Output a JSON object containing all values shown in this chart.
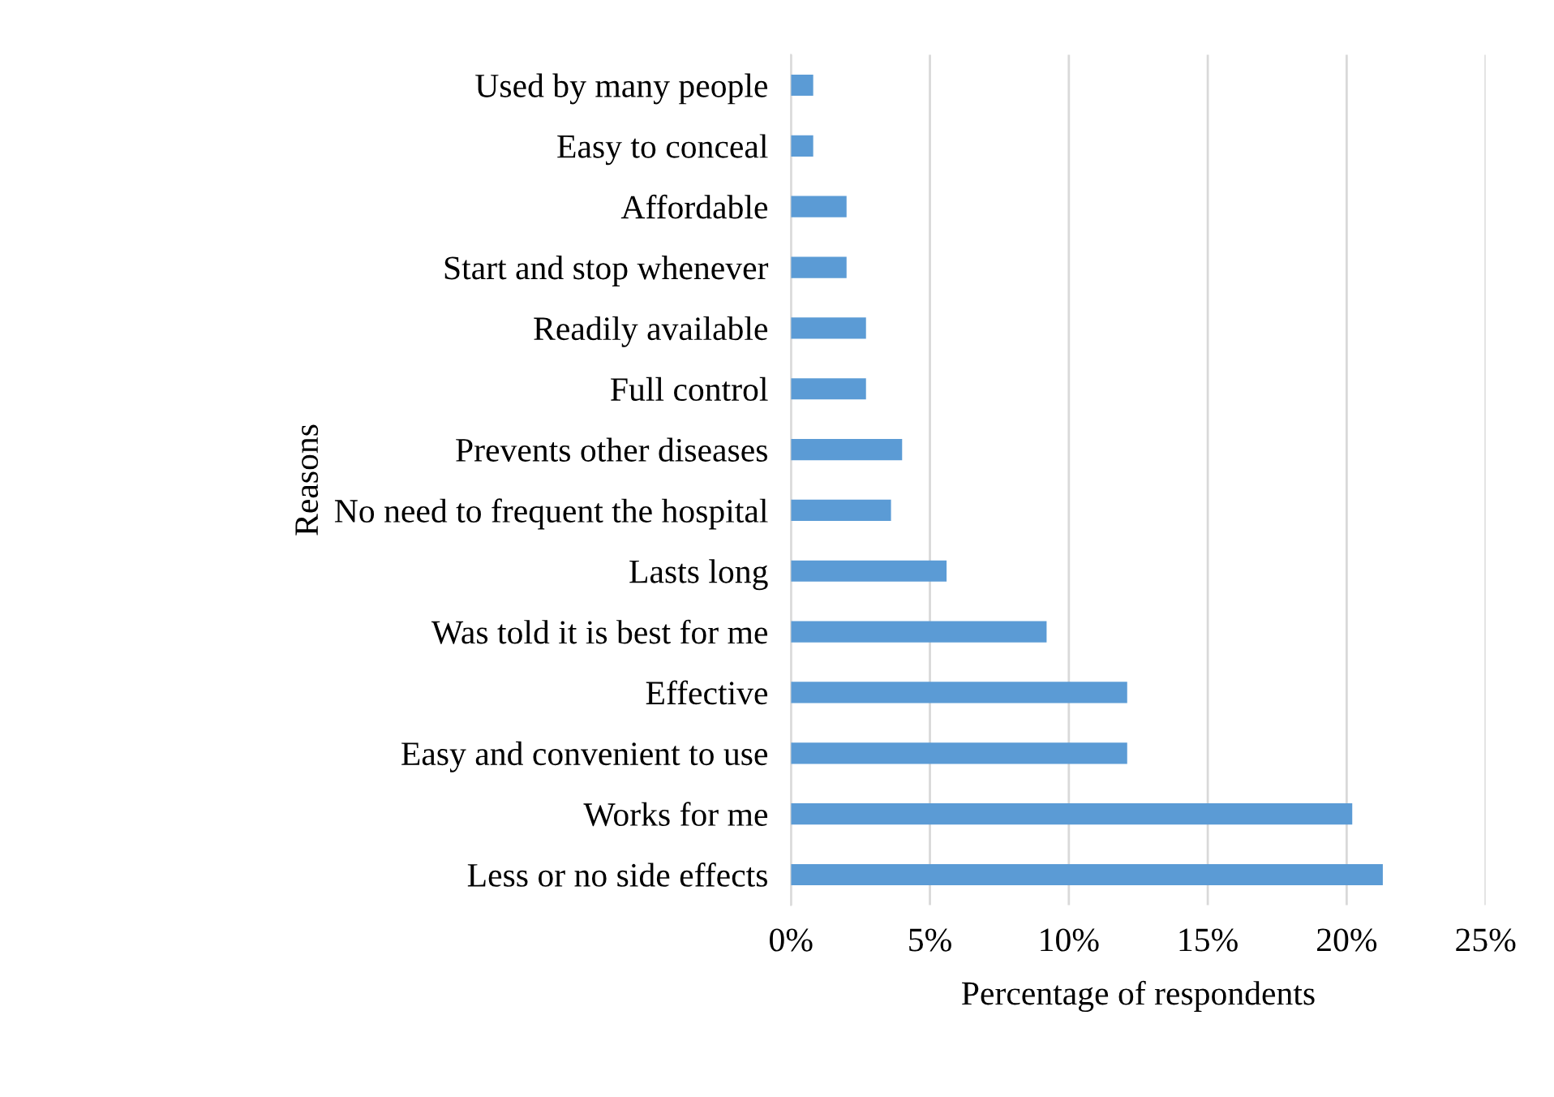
{
  "chart_data": {
    "type": "bar",
    "orientation": "horizontal",
    "xlabel": "Percentage of respondents",
    "ylabel": "Reasons",
    "categories": [
      "Used by many people",
      "Easy to conceal",
      "Affordable",
      "Start and stop whenever",
      "Readily available",
      "Full control",
      "Prevents other diseases",
      "No need to frequent the hospital",
      "Lasts long",
      "Was told it is best for me",
      "Effective",
      "Easy and convenient to use",
      "Works for me",
      "Less or no side effects"
    ],
    "values": [
      0.8,
      0.8,
      2.0,
      2.0,
      2.7,
      2.7,
      4.0,
      3.6,
      5.6,
      9.2,
      12.1,
      12.1,
      20.2,
      21.3
    ],
    "color": "#5b9bd5",
    "xlim": [
      0,
      25
    ],
    "xticks": [
      {
        "value": 0,
        "label": "0%"
      },
      {
        "value": 5,
        "label": "5%"
      },
      {
        "value": 10,
        "label": "10%"
      },
      {
        "value": 15,
        "label": "15%"
      },
      {
        "value": 20,
        "label": "20%"
      },
      {
        "value": 25,
        "label": "25%"
      }
    ],
    "grid": "x"
  }
}
